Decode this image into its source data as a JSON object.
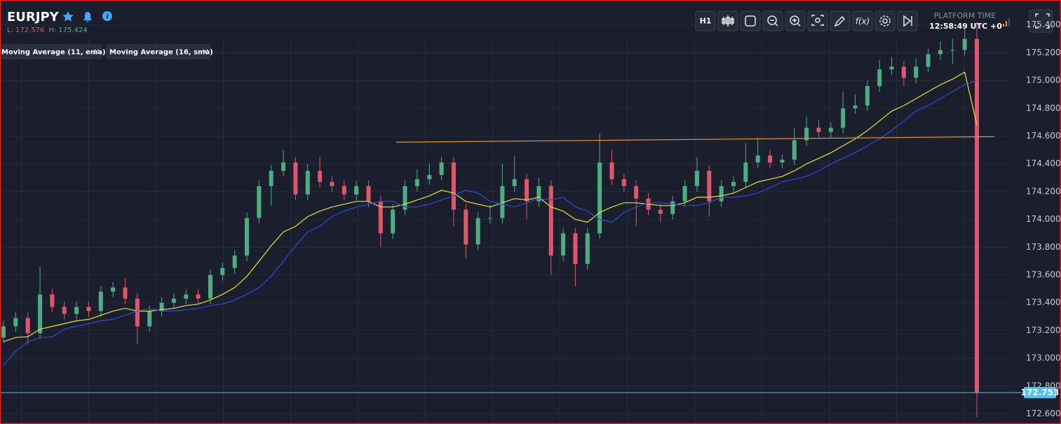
{
  "header": {
    "symbol": "EURJPY",
    "low_label": "L:",
    "low": 172.576,
    "high_label": "H:",
    "high": 175.424
  },
  "toolbar": {
    "timeframe": "H1",
    "platform_time_label": "PLATFORM TIME",
    "platform_time": "12:58:49 UTC +0"
  },
  "chart_data": {
    "type": "candlestick",
    "up_color": "#4caf82",
    "down_color": "#e0566a",
    "candles": [
      [
        173.15,
        173.27,
        173.11,
        173.23
      ],
      [
        173.23,
        173.33,
        173.19,
        173.29
      ],
      [
        173.29,
        173.33,
        173.1,
        173.18
      ],
      [
        173.18,
        173.66,
        173.14,
        173.46
      ],
      [
        173.46,
        173.5,
        173.33,
        173.37
      ],
      [
        173.37,
        173.41,
        173.28,
        173.32
      ],
      [
        173.32,
        173.41,
        173.28,
        173.37
      ],
      [
        173.37,
        173.41,
        173.3,
        173.34
      ],
      [
        173.34,
        173.52,
        173.3,
        173.48
      ],
      [
        173.48,
        173.55,
        173.44,
        173.51
      ],
      [
        173.51,
        173.58,
        173.39,
        173.43
      ],
      [
        173.43,
        173.47,
        173.1,
        173.23
      ],
      [
        173.23,
        173.38,
        173.19,
        173.34
      ],
      [
        173.34,
        173.44,
        173.3,
        173.4
      ],
      [
        173.4,
        173.47,
        173.36,
        173.43
      ],
      [
        173.43,
        173.5,
        173.39,
        173.46
      ],
      [
        173.46,
        173.5,
        173.39,
        173.43
      ],
      [
        173.43,
        173.64,
        173.39,
        173.6
      ],
      [
        173.6,
        173.69,
        173.56,
        173.65
      ],
      [
        173.65,
        173.78,
        173.61,
        173.74
      ],
      [
        173.74,
        174.05,
        173.7,
        174.01
      ],
      [
        174.01,
        174.28,
        173.97,
        174.24
      ],
      [
        174.24,
        174.39,
        174.1,
        174.35
      ],
      [
        174.35,
        174.5,
        174.31,
        174.41
      ],
      [
        174.41,
        174.45,
        174.14,
        174.18
      ],
      [
        174.18,
        174.4,
        174.14,
        174.35
      ],
      [
        174.35,
        174.45,
        174.23,
        174.27
      ],
      [
        174.27,
        174.31,
        174.2,
        174.24
      ],
      [
        174.24,
        174.28,
        174.14,
        174.18
      ],
      [
        174.18,
        174.28,
        174.14,
        174.24
      ],
      [
        174.24,
        174.28,
        174.09,
        174.13
      ],
      [
        174.13,
        174.17,
        173.8,
        173.9
      ],
      [
        173.9,
        174.11,
        173.86,
        174.07
      ],
      [
        174.07,
        174.28,
        174.03,
        174.24
      ],
      [
        174.24,
        174.36,
        174.2,
        174.29
      ],
      [
        174.29,
        174.4,
        174.25,
        174.32
      ],
      [
        174.32,
        174.45,
        174.28,
        174.41
      ],
      [
        174.41,
        174.45,
        173.95,
        174.07
      ],
      [
        174.07,
        174.11,
        173.72,
        173.82
      ],
      [
        173.82,
        174.05,
        173.78,
        174.01
      ],
      [
        174.01,
        174.1,
        173.97,
        174.01
      ],
      [
        174.01,
        174.4,
        173.97,
        174.24
      ],
      [
        174.24,
        174.46,
        174.2,
        174.29
      ],
      [
        174.29,
        174.33,
        174.0,
        174.13
      ],
      [
        174.13,
        174.3,
        174.09,
        174.24
      ],
      [
        174.24,
        174.28,
        173.6,
        173.74
      ],
      [
        173.74,
        173.94,
        173.7,
        173.9
      ],
      [
        173.9,
        173.94,
        173.52,
        173.68
      ],
      [
        173.68,
        173.94,
        173.64,
        173.9
      ],
      [
        173.9,
        174.62,
        173.86,
        174.41
      ],
      [
        174.41,
        174.5,
        174.25,
        174.29
      ],
      [
        174.29,
        174.33,
        174.2,
        174.24
      ],
      [
        174.24,
        174.28,
        173.95,
        174.15
      ],
      [
        174.15,
        174.19,
        174.03,
        174.07
      ],
      [
        174.07,
        174.11,
        173.98,
        174.04
      ],
      [
        174.04,
        174.17,
        174.0,
        174.13
      ],
      [
        174.13,
        174.28,
        174.09,
        174.24
      ],
      [
        174.24,
        174.45,
        174.2,
        174.35
      ],
      [
        174.35,
        174.39,
        174.02,
        174.13
      ],
      [
        174.13,
        174.28,
        174.09,
        174.24
      ],
      [
        174.24,
        174.31,
        174.2,
        174.27
      ],
      [
        174.27,
        174.55,
        174.23,
        174.41
      ],
      [
        174.41,
        174.59,
        174.37,
        174.46
      ],
      [
        174.46,
        174.5,
        174.37,
        174.41
      ],
      [
        174.41,
        174.47,
        174.37,
        174.43
      ],
      [
        174.43,
        174.66,
        174.39,
        174.57
      ],
      [
        174.57,
        174.74,
        174.53,
        174.66
      ],
      [
        174.66,
        174.72,
        174.59,
        174.63
      ],
      [
        174.63,
        174.7,
        174.59,
        174.66
      ],
      [
        174.66,
        174.92,
        174.62,
        174.8
      ],
      [
        174.8,
        174.9,
        174.76,
        174.82
      ],
      [
        174.82,
        175.0,
        174.78,
        174.96
      ],
      [
        174.96,
        175.15,
        174.92,
        175.08
      ],
      [
        175.08,
        175.17,
        175.04,
        175.1
      ],
      [
        175.1,
        175.14,
        174.96,
        175.02
      ],
      [
        175.02,
        175.16,
        174.98,
        175.1
      ],
      [
        175.1,
        175.23,
        175.06,
        175.19
      ],
      [
        175.19,
        175.28,
        175.15,
        175.22
      ],
      [
        175.22,
        175.3,
        175.12,
        175.22
      ],
      [
        175.22,
        175.38,
        175.18,
        175.3
      ],
      [
        175.3,
        175.424,
        172.576,
        172.753
      ]
    ],
    "series": [
      {
        "name": "Moving Average (11, ema)",
        "color": "#e8e32a",
        "values": [
          173.12,
          173.15,
          173.155,
          173.21,
          173.23,
          173.25,
          173.27,
          173.28,
          173.31,
          173.34,
          173.36,
          173.34,
          173.34,
          173.35,
          173.36,
          173.38,
          173.39,
          173.42,
          173.46,
          173.51,
          173.59,
          173.7,
          173.81,
          173.91,
          173.95,
          174.02,
          174.06,
          174.09,
          174.11,
          174.13,
          174.13,
          174.09,
          174.09,
          174.11,
          174.14,
          174.17,
          174.21,
          174.19,
          174.13,
          174.11,
          174.09,
          174.12,
          174.15,
          174.14,
          174.16,
          174.09,
          174.06,
          174.0,
          173.98,
          174.05,
          174.09,
          174.12,
          174.12,
          174.11,
          174.1,
          174.1,
          174.12,
          174.16,
          174.16,
          174.17,
          174.19,
          174.23,
          174.27,
          174.29,
          174.31,
          174.35,
          174.4,
          174.44,
          174.48,
          174.53,
          174.58,
          174.64,
          174.71,
          174.78,
          174.82,
          174.87,
          174.92,
          174.97,
          175.01,
          175.06,
          174.68
        ]
      },
      {
        "name": "Moving Average (16, sma)",
        "color": "#2f4ad6",
        "values": [
          172.95,
          173.05,
          173.12,
          173.15,
          173.155,
          173.21,
          173.23,
          173.25,
          173.27,
          173.28,
          173.31,
          173.34,
          173.36,
          173.34,
          173.34,
          173.35,
          173.36,
          173.38,
          173.39,
          173.42,
          173.46,
          173.51,
          173.59,
          173.7,
          173.81,
          173.91,
          173.95,
          174.02,
          174.06,
          174.09,
          174.11,
          174.13,
          174.13,
          174.09,
          174.09,
          174.11,
          174.14,
          174.17,
          174.21,
          174.19,
          174.13,
          174.11,
          174.09,
          174.12,
          174.15,
          174.14,
          174.16,
          174.09,
          174.06,
          174.0,
          173.98,
          174.05,
          174.09,
          174.12,
          174.12,
          174.11,
          174.1,
          174.1,
          174.12,
          174.16,
          174.16,
          174.17,
          174.19,
          174.23,
          174.27,
          174.29,
          174.31,
          174.35,
          174.4,
          174.44,
          174.48,
          174.53,
          174.58,
          174.64,
          174.71,
          174.78,
          174.82,
          174.87,
          174.92,
          174.97,
          175.0
        ]
      }
    ],
    "trendline": {
      "values": [
        174.556,
        174.596
      ],
      "color": "#e5952a"
    },
    "last_price": 172.753,
    "last_price_color": "#4fc3f7",
    "ylim": [
      172.527,
      175.58
    ],
    "yticks": [
      {
        "value": 172.6,
        "label": "172.600"
      },
      {
        "value": 172.8,
        "label": "172.800"
      },
      {
        "value": 173.0,
        "label": "173.000"
      },
      {
        "value": 173.2,
        "label": "173.200"
      },
      {
        "value": 173.4,
        "label": "173.400"
      },
      {
        "value": 173.6,
        "label": "173.600"
      },
      {
        "value": 173.8,
        "label": "173.800"
      },
      {
        "value": 174.0,
        "label": "174.000"
      },
      {
        "value": 174.2,
        "label": "174.200"
      },
      {
        "value": 174.4,
        "label": "174.400"
      },
      {
        "value": 174.6,
        "label": "174.600"
      },
      {
        "value": 174.8,
        "label": "174.800"
      },
      {
        "value": 175.0,
        "label": "175.000"
      },
      {
        "value": 175.2,
        "label": "175.200"
      },
      {
        "value": 175.4,
        "label": "175.400"
      }
    ],
    "grid": true
  }
}
